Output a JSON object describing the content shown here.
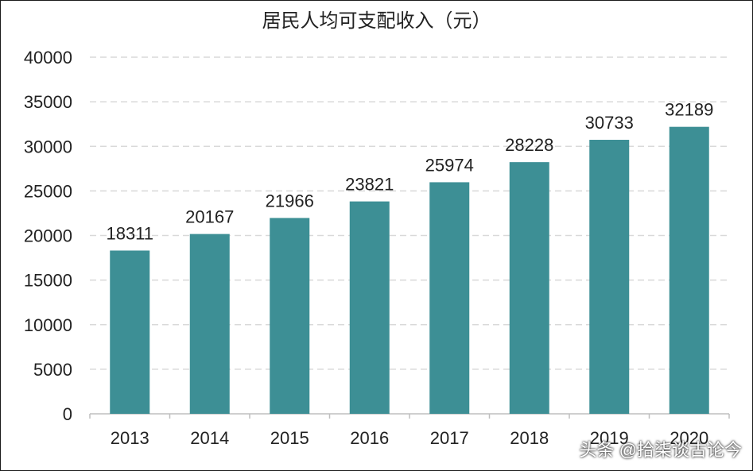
{
  "chart_data": {
    "type": "bar",
    "title": "居民人均可支配收入（元）",
    "categories": [
      "2013",
      "2014",
      "2015",
      "2016",
      "2017",
      "2018",
      "2019",
      "2020"
    ],
    "values": [
      18311,
      20167,
      21966,
      23821,
      25974,
      28228,
      30733,
      32189
    ],
    "ylim": [
      0,
      40000
    ],
    "yticks": [
      0,
      5000,
      10000,
      15000,
      20000,
      25000,
      30000,
      35000,
      40000
    ],
    "xlabel": "",
    "ylabel": "",
    "grid": true,
    "legend": "none",
    "bar_color": "#3d8f95",
    "grid_color": "#d9d9d9"
  },
  "watermark": "头条 @拾柒谈古论今"
}
